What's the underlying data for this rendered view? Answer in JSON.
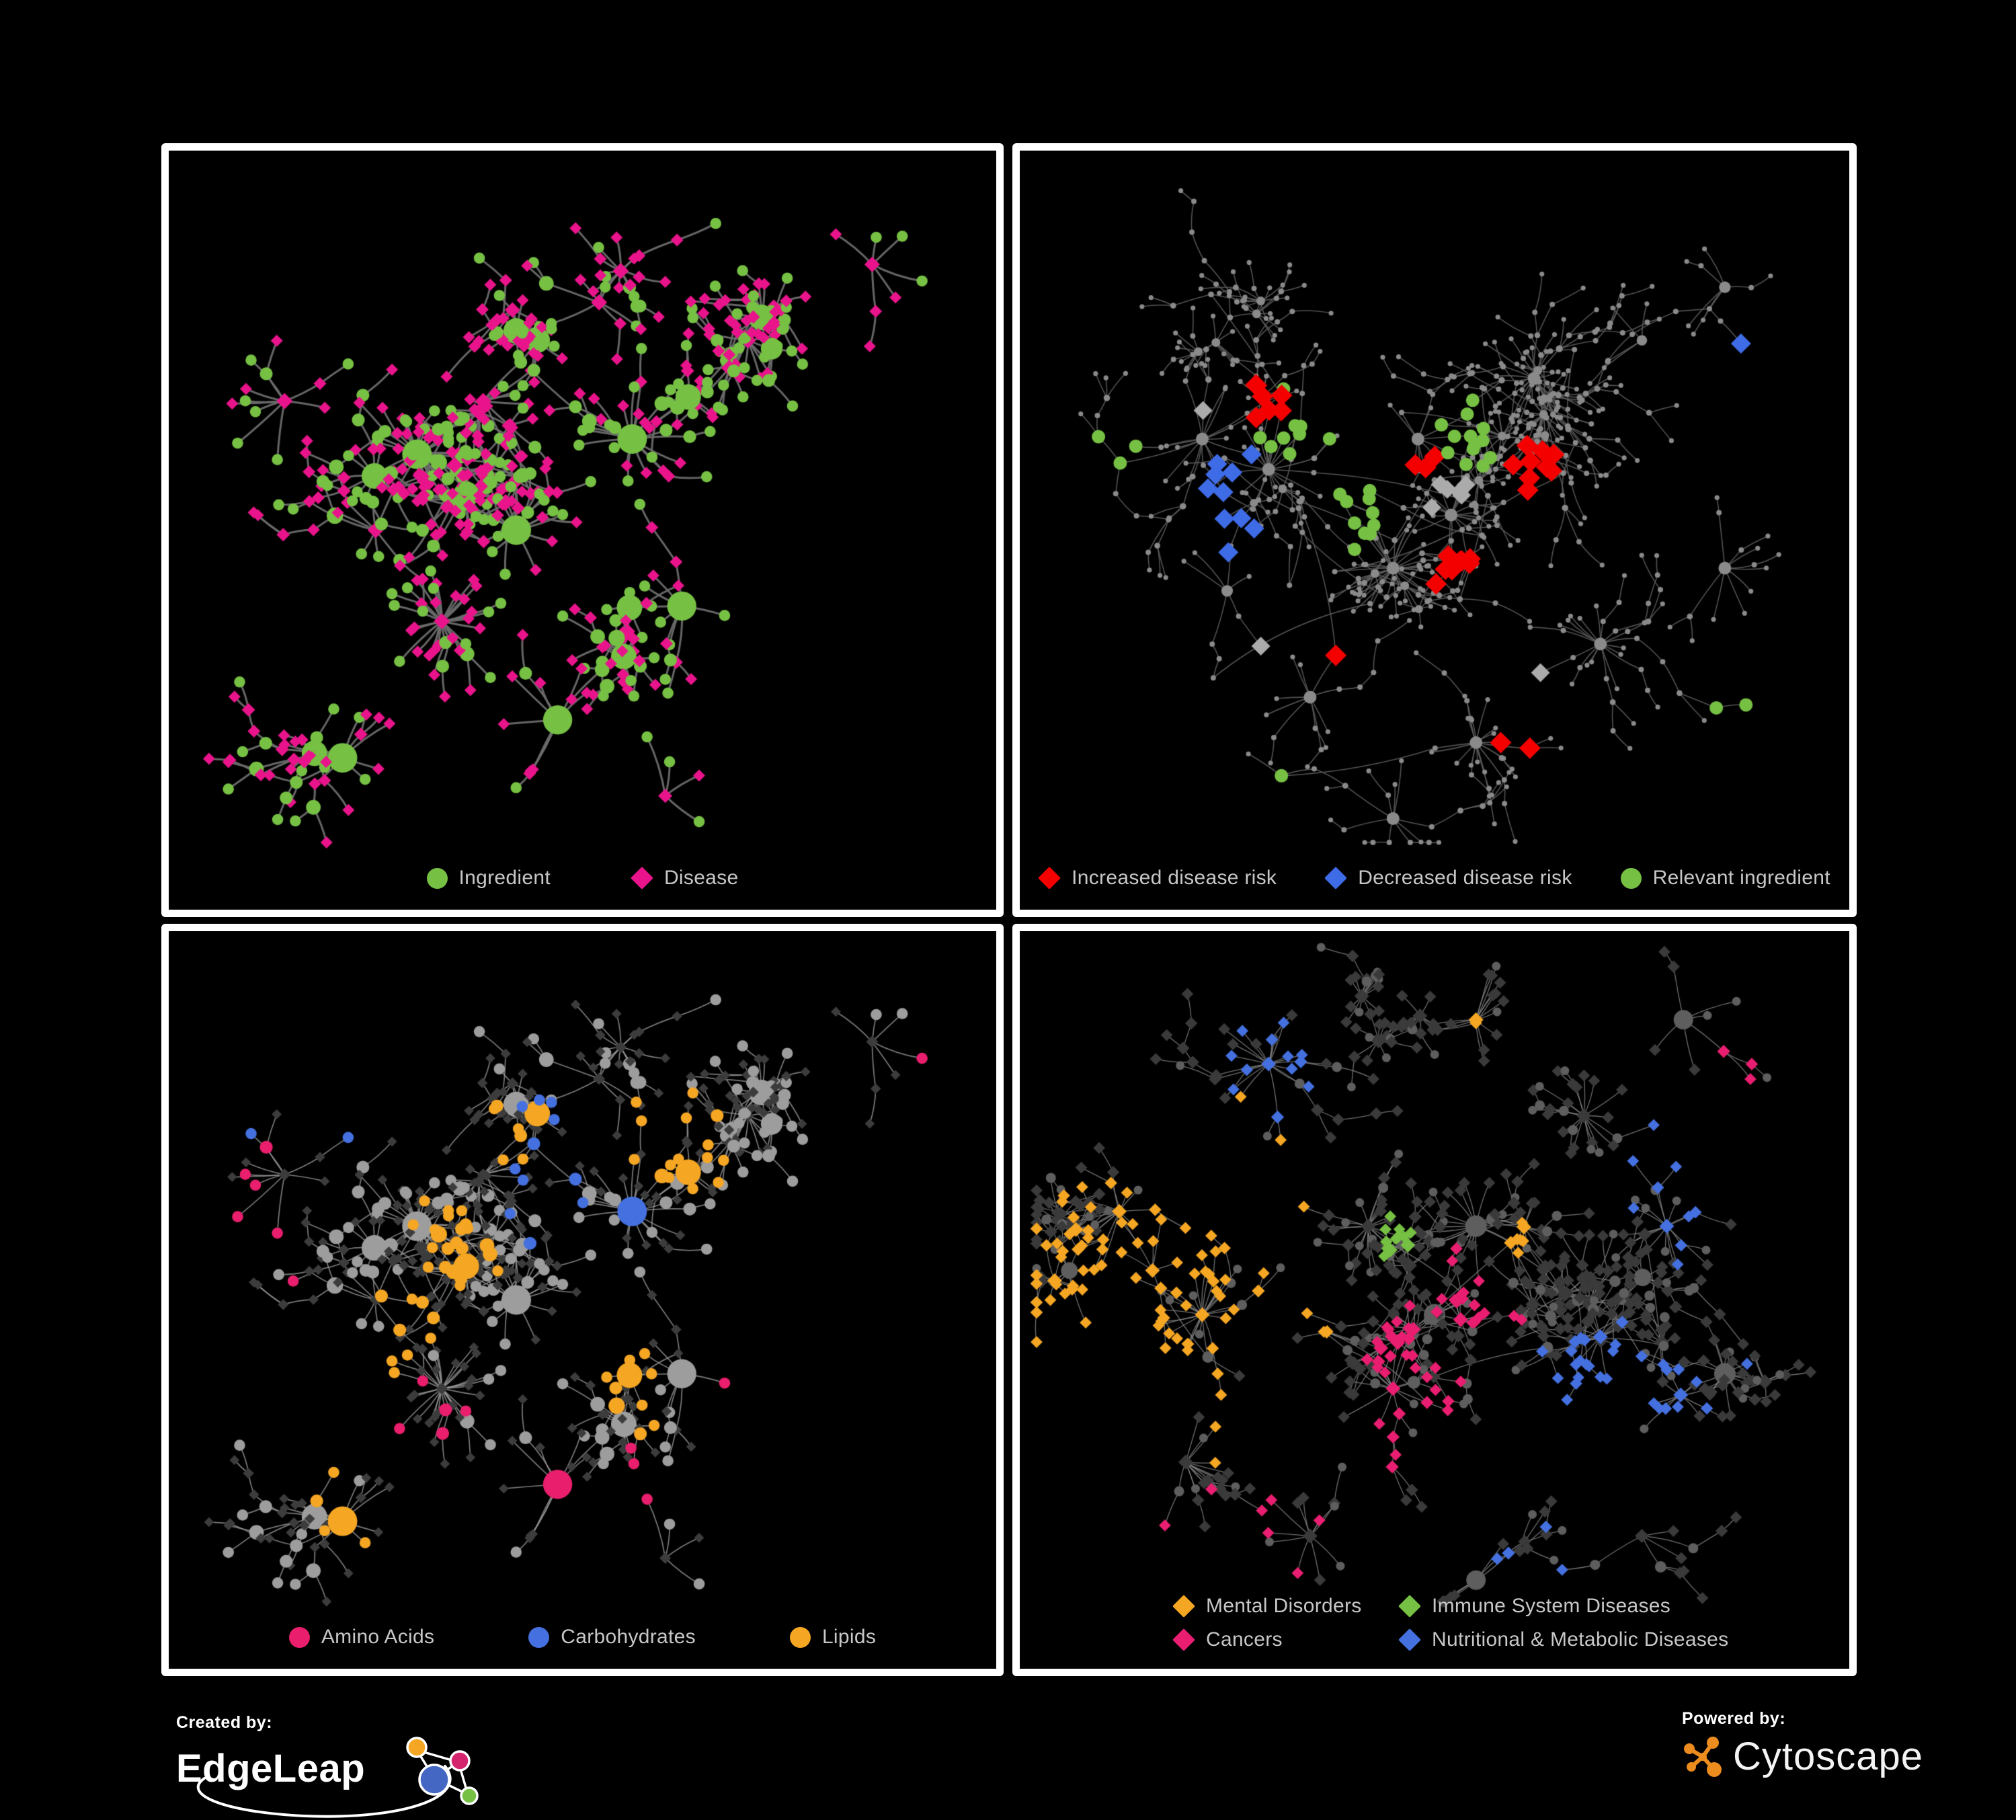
{
  "page": {
    "background": "#000000",
    "panel_border_color": "#FFFFFF",
    "legend_text_color": "#C7C7C7"
  },
  "branding": {
    "created_by": "Created by:",
    "edgeleap_wordmark": "EdgeLeap",
    "powered_by": "Powered by:",
    "cytoscape_wordmark": "Cytoscape",
    "edgeleap_node_colors": [
      "#F5A623",
      "#D4246E",
      "#4467C4",
      "#76C043"
    ],
    "cytoscape_logo_color": "#EC8B1E"
  },
  "chart_data": {
    "type": "network",
    "layout": "2x2-small-multiples",
    "panels": [
      {
        "id": "ingredient-disease",
        "legend": {
          "layout": "row",
          "gap": 120,
          "items": [
            {
              "shape": "circle",
              "color": "#76C043",
              "label": "Ingredient"
            },
            {
              "shape": "diamond",
              "color": "#E9148B",
              "label": "Disease"
            }
          ]
        },
        "network": {
          "seed": 1337,
          "nodes": 620,
          "circle_prob": 0.42,
          "hubs": [
            [
              0.3,
              0.4
            ],
            [
              0.38,
              0.33
            ],
            [
              0.25,
              0.5
            ],
            [
              0.42,
              0.5
            ],
            [
              0.33,
              0.62
            ],
            [
              0.52,
              0.2
            ],
            [
              0.56,
              0.38
            ],
            [
              0.62,
              0.6
            ],
            [
              0.21,
              0.8
            ],
            [
              0.47,
              0.75
            ],
            [
              0.14,
              0.33
            ],
            [
              0.7,
              0.25
            ],
            [
              0.85,
              0.15
            ],
            [
              0.6,
              0.85
            ]
          ],
          "core_bias": 0.22,
          "burst_prob": 0.075,
          "step_min": 24,
          "step_var": 40,
          "edge": {
            "color": "#6C6C6C",
            "width": 3.0,
            "alpha": 0.95
          },
          "extra_edge_frac": 0.05,
          "link_range": 0.11,
          "circle": {
            "color": "#76C043",
            "r_base": 7,
            "r_deg": 1.3,
            "r_max": 19
          },
          "diamond": {
            "color": "#E9148B",
            "s_base": 8.5,
            "s_deg": 0.5,
            "s_max": 12
          },
          "rules": []
        }
      },
      {
        "id": "disease-risk",
        "legend": {
          "layout": "row",
          "gap": 72,
          "items": [
            {
              "shape": "diamond",
              "color": "#F40000",
              "label": "Increased disease risk"
            },
            {
              "shape": "diamond",
              "color": "#3E6BE6",
              "label": "Decreased disease risk"
            },
            {
              "shape": "circle",
              "color": "#76C043",
              "label": "Relevant ingredient"
            }
          ]
        },
        "network": {
          "seed": 4242,
          "nodes": 760,
          "circle_prob": 1.0,
          "hubs": [
            [
              0.22,
              0.38
            ],
            [
              0.3,
              0.42
            ],
            [
              0.48,
              0.38
            ],
            [
              0.52,
              0.48
            ],
            [
              0.45,
              0.55
            ],
            [
              0.62,
              0.3
            ],
            [
              0.75,
              0.25
            ],
            [
              0.85,
              0.18
            ],
            [
              0.35,
              0.72
            ],
            [
              0.55,
              0.78
            ],
            [
              0.7,
              0.65
            ],
            [
              0.25,
              0.58
            ],
            [
              0.85,
              0.55
            ],
            [
              0.45,
              0.88
            ]
          ],
          "core_bias": 0.2,
          "burst_prob": 0.06,
          "step_min": 22,
          "step_var": 38,
          "edge": {
            "color": "#5B5B5B",
            "width": 1.6,
            "alpha": 0.9
          },
          "extra_edge_frac": 0.1,
          "link_range": 0.22,
          "circle": {
            "color": "#8A8A8A",
            "r_base": 3.2,
            "r_deg": 0.4,
            "r_max": 6.5
          },
          "diamond": {
            "color": "#8A8A8A",
            "s_base": 3.5,
            "s_deg": 0.3,
            "s_max": 6
          },
          "rules": [
            {
              "from": "any",
              "shape": "diamond",
              "color": "#F40000",
              "count": 32,
              "size": 16,
              "spread": 0.3,
              "centers": [
                [
                  0.47,
                  0.4
                ],
                [
                  0.52,
                  0.55
                ],
                [
                  0.3,
                  0.33
                ],
                [
                  0.62,
                  0.42
                ],
                [
                  0.38,
                  0.68
                ],
                [
                  0.6,
                  0.78
                ]
              ]
            },
            {
              "from": "any",
              "shape": "diamond",
              "color": "#3E6BE6",
              "count": 11,
              "size": 15,
              "spread": 0.1,
              "centers": [
                [
                  0.245,
                  0.43
                ],
                [
                  0.255,
                  0.5
                ],
                [
                  0.88,
                  0.28
                ]
              ]
            },
            {
              "from": "any",
              "shape": "diamond",
              "color": "#ABABAB",
              "count": 9,
              "size": 14,
              "spread": 0.25,
              "centers": [
                [
                  0.22,
                  0.35
                ],
                [
                  0.52,
                  0.46
                ],
                [
                  0.63,
                  0.7
                ],
                [
                  0.3,
                  0.62
                ]
              ]
            },
            {
              "from": "any",
              "shape": "circle",
              "color": "#76C043",
              "count": 38,
              "size": 10,
              "spread": 0.35,
              "centers": [
                [
                  0.42,
                  0.48
                ],
                [
                  0.33,
                  0.36
                ],
                [
                  0.52,
                  0.38
                ],
                [
                  0.12,
                  0.4
                ],
                [
                  0.88,
                  0.72
                ],
                [
                  0.3,
                  0.88
                ]
              ]
            }
          ]
        }
      },
      {
        "id": "compound-classes",
        "legend": {
          "layout": "row",
          "gap": 140,
          "items": [
            {
              "shape": "circle",
              "color": "#E91E6C",
              "label": "Amino Acids"
            },
            {
              "shape": "circle",
              "color": "#4470E0",
              "label": "Carbohydrates"
            },
            {
              "shape": "circle",
              "color": "#F5A623",
              "label": "Lipids"
            }
          ]
        },
        "network": {
          "seed": 1337,
          "nodes": 620,
          "circle_prob": 0.42,
          "hubs": [
            [
              0.3,
              0.4
            ],
            [
              0.38,
              0.33
            ],
            [
              0.25,
              0.5
            ],
            [
              0.42,
              0.5
            ],
            [
              0.33,
              0.62
            ],
            [
              0.52,
              0.2
            ],
            [
              0.56,
              0.38
            ],
            [
              0.62,
              0.6
            ],
            [
              0.21,
              0.8
            ],
            [
              0.47,
              0.75
            ],
            [
              0.14,
              0.33
            ],
            [
              0.7,
              0.25
            ],
            [
              0.85,
              0.15
            ],
            [
              0.6,
              0.85
            ]
          ],
          "core_bias": 0.22,
          "burst_prob": 0.075,
          "step_min": 24,
          "step_var": 40,
          "edge": {
            "color": "#9A9A9A",
            "width": 1.7,
            "alpha": 0.8
          },
          "extra_edge_frac": 0.05,
          "link_range": 0.11,
          "circle": {
            "color": "#9D9D9D",
            "r_base": 7,
            "r_deg": 1.3,
            "r_max": 19
          },
          "diamond": {
            "color": "#3C3C3C",
            "s_base": 7,
            "s_deg": 0.4,
            "s_max": 9
          },
          "rules": [
            {
              "from": "circle",
              "color": "#F5A623",
              "count": 72,
              "spread": 0.16,
              "centers": [
                [
                  0.38,
                  0.28
                ],
                [
                  0.33,
                  0.44
                ],
                [
                  0.3,
                  0.52
                ],
                [
                  0.55,
                  0.6
                ],
                [
                  0.24,
                  0.8
                ],
                [
                  0.62,
                  0.28
                ]
              ]
            },
            {
              "from": "circle",
              "color": "#E91E6C",
              "count": 17,
              "spread": 0.5,
              "centers": [
                [
                  0.12,
                  0.38
                ],
                [
                  0.3,
                  0.66
                ],
                [
                  0.5,
                  0.8
                ],
                [
                  0.75,
                  0.6
                ],
                [
                  0.93,
                  0.2
                ],
                [
                  0.55,
                  0.95
                ]
              ]
            },
            {
              "from": "circle",
              "color": "#4470E0",
              "count": 14,
              "spread": 0.12,
              "centers": [
                [
                  0.44,
                  0.28
                ],
                [
                  0.47,
                  0.33
                ],
                [
                  0.86,
                  0.57
                ],
                [
                  0.12,
                  0.3
                ]
              ]
            }
          ]
        }
      },
      {
        "id": "disease-categories",
        "legend": {
          "layout": "grid",
          "items": [
            {
              "shape": "diamond",
              "color": "#F5A623",
              "label": "Mental Disorders"
            },
            {
              "shape": "diamond",
              "color": "#76C043",
              "label": "Immune System Diseases"
            },
            {
              "shape": "diamond",
              "color": "#E91E70",
              "label": "Cancers"
            },
            {
              "shape": "diamond",
              "color": "#4470E0",
              "label": "Nutritional & Metabolic Diseases"
            }
          ]
        },
        "network": {
          "seed": 777,
          "nodes": 800,
          "circle_prob": 0.22,
          "hubs": [
            [
              0.16,
              0.46
            ],
            [
              0.22,
              0.52
            ],
            [
              0.12,
              0.38
            ],
            [
              0.42,
              0.4
            ],
            [
              0.5,
              0.52
            ],
            [
              0.55,
              0.4
            ],
            [
              0.45,
              0.62
            ],
            [
              0.7,
              0.55
            ],
            [
              0.78,
              0.4
            ],
            [
              0.85,
              0.6
            ],
            [
              0.68,
              0.25
            ],
            [
              0.55,
              0.12
            ],
            [
              0.3,
              0.18
            ],
            [
              0.8,
              0.12
            ],
            [
              0.35,
              0.82
            ],
            [
              0.55,
              0.88
            ],
            [
              0.75,
              0.82
            ],
            [
              0.2,
              0.72
            ]
          ],
          "core_bias": 0.2,
          "burst_prob": 0.07,
          "step_min": 22,
          "step_var": 36,
          "edge": {
            "color": "#8B8B8B",
            "width": 1.3,
            "alpha": 0.8
          },
          "extra_edge_frac": 0.12,
          "link_range": 0.18,
          "circle": {
            "color": "#5E5E5E",
            "r_base": 5.5,
            "r_deg": 1.0,
            "r_max": 13
          },
          "diamond": {
            "color": "#3A3A3A",
            "s_base": 8.5,
            "s_deg": 0.4,
            "s_max": 11
          },
          "rules": [
            {
              "from": "diamond",
              "color": "#F5A623",
              "count": 90,
              "spread": 0.13,
              "centers": [
                [
                  0.16,
                  0.46
                ],
                [
                  0.21,
                  0.52
                ],
                [
                  0.12,
                  0.55
                ],
                [
                  0.24,
                  0.4
                ]
              ]
            },
            {
              "from": "diamond",
              "color": "#F5A623",
              "count": 10,
              "spread": 0.8,
              "centers": [
                [
                  0.55,
                  0.1
                ],
                [
                  0.45,
                  0.95
                ],
                [
                  0.6,
                  0.42
                ]
              ]
            },
            {
              "from": "diamond",
              "color": "#E91E70",
              "count": 52,
              "spread": 0.15,
              "centers": [
                [
                  0.46,
                  0.58
                ],
                [
                  0.52,
                  0.64
                ],
                [
                  0.42,
                  0.68
                ],
                [
                  0.55,
                  0.5
                ]
              ]
            },
            {
              "from": "diamond",
              "color": "#E91E70",
              "count": 10,
              "spread": 0.6,
              "centers": [
                [
                  0.9,
                  0.22
                ],
                [
                  0.28,
                  0.88
                ],
                [
                  0.13,
                  0.8
                ]
              ]
            },
            {
              "from": "diamond",
              "color": "#4470E0",
              "count": 58,
              "spread": 0.25,
              "centers": [
                [
                  0.7,
                  0.62
                ],
                [
                  0.76,
                  0.66
                ],
                [
                  0.8,
                  0.35
                ],
                [
                  0.6,
                  0.9
                ],
                [
                  0.3,
                  0.2
                ],
                [
                  0.92,
                  0.5
                ]
              ]
            },
            {
              "from": "diamond",
              "color": "#76C043",
              "count": 12,
              "spread": 0.9,
              "centers": [
                [
                  0.45,
                  0.42
                ],
                [
                  0.52,
                  0.3
                ],
                [
                  0.8,
                  0.68
                ],
                [
                  0.3,
                  0.1
                ]
              ]
            }
          ]
        }
      }
    ]
  }
}
